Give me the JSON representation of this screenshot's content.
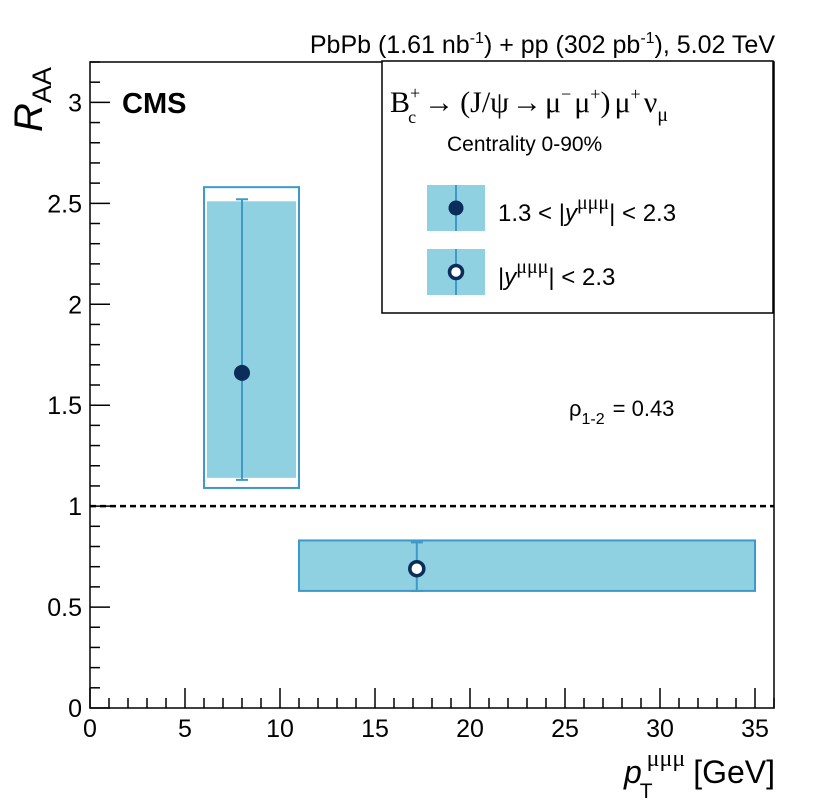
{
  "chart_data": {
    "type": "scatter",
    "title": "PbPb (1.61 nb⁻¹) + pp (302 pb⁻¹), 5.02 TeV",
    "title_parts": {
      "a": "PbPb (1.61 nb",
      "a_sup": "-1",
      "b": ") + pp (302 pb",
      "b_sup": "-1",
      "c": "), 5.02 TeV"
    },
    "experiment_label": "CMS",
    "xlabel": {
      "main": "p",
      "sub": "T",
      "sup": "μμμ",
      "unit": "[GeV]"
    },
    "ylabel": {
      "main": "R",
      "sub": "AA"
    },
    "xlim": [
      0,
      36
    ],
    "ylim": [
      0,
      3.2
    ],
    "x_ticks": [
      0,
      5,
      10,
      15,
      20,
      25,
      30,
      35
    ],
    "x_tick_labels": [
      "0",
      "5",
      "10",
      "15",
      "20",
      "25",
      "30",
      "35"
    ],
    "y_ticks": [
      0,
      0.5,
      1,
      1.5,
      2,
      2.5,
      3
    ],
    "y_tick_labels": [
      "0",
      "0.5",
      "1",
      "1.5",
      "2",
      "2.5",
      "3"
    ],
    "reference_line": {
      "y": 1,
      "style": "dashed"
    },
    "legend": {
      "position": "top-right",
      "process": {
        "b": "B",
        "b_sup": "+",
        "b_sub": "c",
        "arrow1": "→",
        "paren_open": "(J/ψ",
        "arrow2": "→",
        "mu_minus": "μ",
        "mu_minus_sup": "−",
        "mu_plus": "μ",
        "mu_plus_sup": "+",
        "paren_close": ")",
        "mu_plus2": "μ",
        "mu_plus2_sup": "+",
        "nu": "ν",
        "nu_sub": "μ"
      },
      "centrality": "Centrality 0-90%",
      "entries": [
        {
          "marker": "filled",
          "pre": "1.3 < |",
          "var": "y",
          "sup": "μμμ",
          "post": "| < 2.3"
        },
        {
          "marker": "open",
          "pre": "|",
          "var": "y",
          "sup": "μμμ",
          "post": "| < 2.3"
        }
      ]
    },
    "annotation": {
      "rho": "ρ",
      "rho_sub": "1-2",
      "rho_value": "= 0.43"
    },
    "series": [
      {
        "name": "1.3 < |y| < 2.3",
        "marker": "filled",
        "x": 8,
        "y": 1.66,
        "x_range": [
          6,
          11
        ],
        "stat_err": [
          1.13,
          2.52
        ],
        "syst_box": [
          1.14,
          2.51
        ],
        "outer_box": [
          1.09,
          2.58
        ]
      },
      {
        "name": "|y| < 2.3",
        "marker": "open",
        "x": 17.2,
        "y": 0.69,
        "x_range": [
          11,
          35
        ],
        "stat_err": [
          0.58,
          0.82
        ],
        "syst_box": [
          0.58,
          0.83
        ],
        "outer_box": null
      }
    ],
    "colors": {
      "box_fill": "#8fd1e1",
      "box_edge": "#3d99c9",
      "marker": "#0b2d5a",
      "axis": "#000000"
    }
  }
}
